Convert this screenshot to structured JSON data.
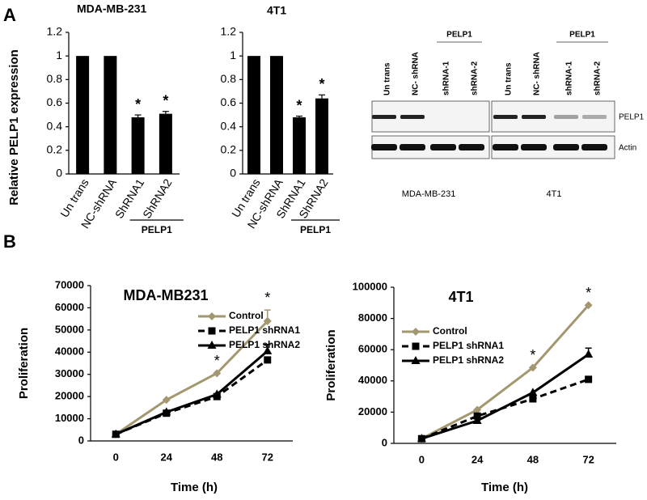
{
  "panels": [
    "A",
    "B"
  ],
  "chart_data": [
    {
      "type": "bar",
      "title": "MDA-MB-231",
      "ylabel": "Relative PELP1 expression",
      "categories": [
        "Un trans",
        "NC-shRNA",
        "ShRNA1",
        "ShRNA2"
      ],
      "values": [
        1,
        1,
        0.48,
        0.51
      ],
      "errors": [
        0,
        0,
        0.02,
        0.02
      ],
      "color": "#000000",
      "ylim": [
        0,
        1.2
      ],
      "yticks": [
        0,
        0.2,
        0.4,
        0.6,
        0.8,
        1,
        1.2
      ],
      "group_label": "PELP1",
      "annotations": [
        "*",
        "*"
      ]
    },
    {
      "type": "bar",
      "title": "4T1",
      "categories": [
        "Un trans",
        "NC-shRNA",
        "ShRNA1",
        "ShRNA2"
      ],
      "values": [
        1,
        1,
        0.48,
        0.64
      ],
      "errors": [
        0,
        0,
        0.01,
        0.03
      ],
      "color": "#000000",
      "ylim": [
        0,
        1.2
      ],
      "yticks": [
        0,
        0.2,
        0.4,
        0.6,
        0.8,
        1,
        1.2
      ],
      "group_label": "PELP1",
      "annotations": [
        "*",
        "*"
      ]
    },
    {
      "type": "line",
      "title": "MDA-MB231",
      "xlabel": "Time (h)",
      "ylabel": "Proliferation",
      "categories": [
        "0",
        "24",
        "48",
        "72"
      ],
      "series": [
        {
          "name": "Control",
          "color": "#a39770",
          "dashed": false,
          "marker": "diamond",
          "values": [
            3000,
            18500,
            30500,
            54000
          ],
          "errors": [
            0,
            0,
            0,
            5000
          ]
        },
        {
          "name": "PELP1 shRNA1",
          "color": "#000000",
          "dashed": true,
          "marker": "square",
          "values": [
            3000,
            12500,
            20000,
            36500
          ],
          "errors": [
            0,
            0,
            0,
            0
          ]
        },
        {
          "name": "PELP1 shRNA2",
          "color": "#000000",
          "dashed": false,
          "marker": "triangle",
          "values": [
            3000,
            13000,
            21000,
            40500
          ],
          "errors": [
            0,
            0,
            0,
            3000
          ]
        }
      ],
      "ylim": [
        0,
        70000
      ],
      "yticks": [
        0,
        10000,
        20000,
        30000,
        40000,
        50000,
        60000,
        70000
      ],
      "annotations": [
        "*",
        "*"
      ]
    },
    {
      "type": "line",
      "title": "4T1",
      "xlabel": "Time (h)",
      "ylabel": "Proliferation",
      "categories": [
        "0",
        "24",
        "48",
        "72"
      ],
      "series": [
        {
          "name": "Control",
          "color": "#a39770",
          "dashed": false,
          "marker": "diamond",
          "values": [
            3000,
            21500,
            48500,
            88500
          ],
          "errors": [
            0,
            0,
            0,
            0
          ]
        },
        {
          "name": "PELP1 shRNA1",
          "color": "#000000",
          "dashed": true,
          "marker": "square",
          "values": [
            3000,
            17500,
            28500,
            41000
          ],
          "errors": [
            0,
            0,
            0,
            0
          ]
        },
        {
          "name": "PELP1 shRNA2",
          "color": "#000000",
          "dashed": false,
          "marker": "triangle",
          "values": [
            3000,
            14500,
            32500,
            57000
          ],
          "errors": [
            0,
            0,
            0,
            4000
          ]
        }
      ],
      "ylim": [
        0,
        100000
      ],
      "yticks": [
        0,
        20000,
        40000,
        60000,
        80000,
        100000
      ],
      "annotations": [
        "*",
        "*"
      ]
    }
  ],
  "blot": {
    "lanes": [
      "Un trans",
      "NC- shRNA",
      "shRNA-1",
      "shRNA-2",
      "Un trans",
      "NC- shRNA",
      "shRNA-1",
      "shRNA-2"
    ],
    "groups": [
      "PELP1",
      "PELP1"
    ],
    "rows": [
      "PELP1",
      "Actin"
    ],
    "cells": [
      "MDA-MB-231",
      "4T1"
    ]
  }
}
